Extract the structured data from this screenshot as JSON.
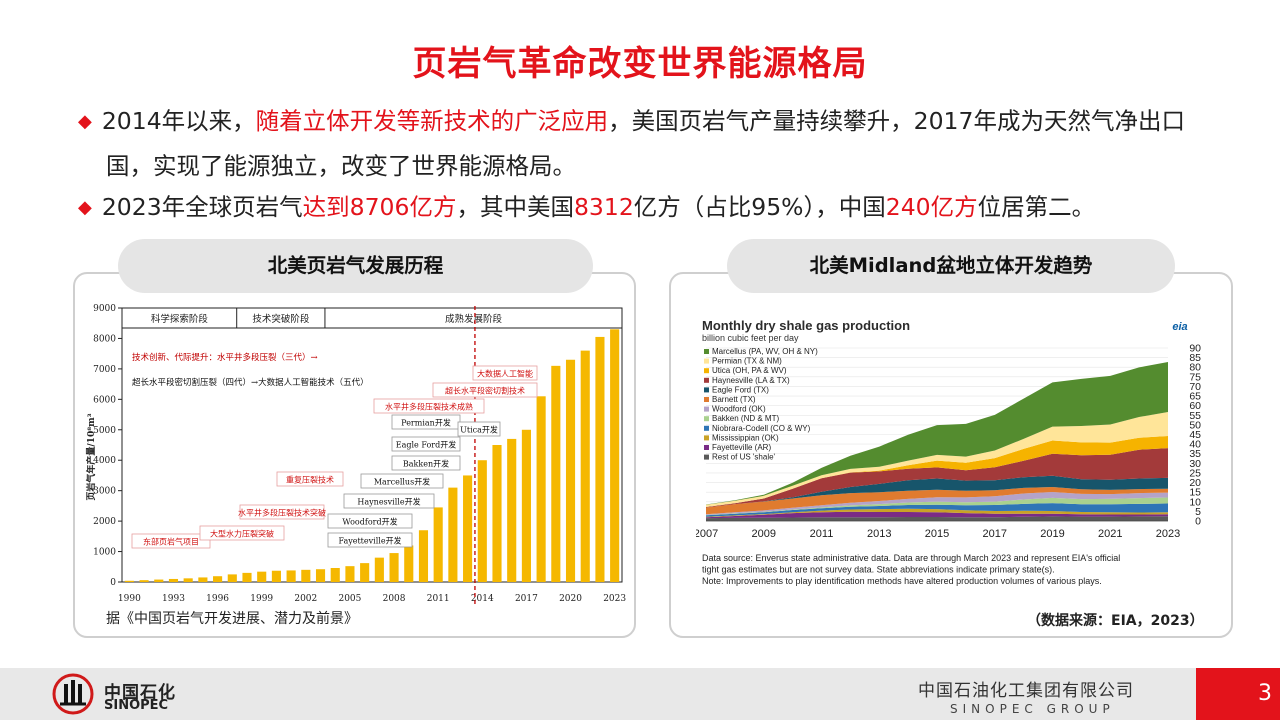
{
  "title": "页岩气革命改变世界能源格局",
  "bullets": {
    "b1_pre": "2014年以来，",
    "b1_red": "随着立体开发等新技术的广泛应用",
    "b1_post": "，美国页岩气产量持续攀升，2017年成为天然气净出口",
    "b1_line2": "国，实现了能源独立，改变了世界能源格局。",
    "b2_pre": "2023年全球页岩气",
    "b2_red1": "达到8706亿方",
    "b2_mid": "，其中美国",
    "b2_red2": "8312",
    "b2_mid2": "亿方（占比95%），中国",
    "b2_red3": "240亿方",
    "b2_post": "位居第二。"
  },
  "left_panel": {
    "heading": "北美页岩气发展历程",
    "source": "据《中国页岩气开发进展、潜力及前景》"
  },
  "right_panel": {
    "heading": "北美Midland盆地立体开发趋势",
    "source": "（数据来源：EIA，2023）"
  },
  "footer": {
    "logo_cn": "中国石化",
    "logo_en": "SINOPEC",
    "company_cn": "中国石油化工集团有限公司",
    "company_en": "SINOPEC GROUP",
    "page": "3"
  },
  "chart_data": [
    {
      "type": "bar",
      "ylabel": "页岩气年产量/10⁸m³",
      "ylim": [
        0,
        9000
      ],
      "yticks": [
        "0",
        "1000",
        "2000",
        "3000",
        "4000",
        "5000",
        "6000",
        "7000",
        "8000",
        "9000"
      ],
      "xticks": [
        "1990",
        "1993",
        "1996",
        "1999",
        "2002",
        "2005",
        "2008",
        "2011",
        "2014",
        "2017",
        "2020",
        "2023"
      ],
      "x": [
        1990,
        1991,
        1992,
        1993,
        1994,
        1995,
        1996,
        1997,
        1998,
        1999,
        2000,
        2001,
        2002,
        2003,
        2004,
        2005,
        2006,
        2007,
        2008,
        2009,
        2010,
        2011,
        2012,
        2013,
        2014,
        2015,
        2016,
        2017,
        2018,
        2019,
        2020,
        2021,
        2022,
        2023
      ],
      "values": [
        40,
        60,
        80,
        100,
        120,
        150,
        190,
        250,
        300,
        340,
        370,
        380,
        400,
        420,
        460,
        520,
        620,
        800,
        950,
        1200,
        1700,
        2450,
        3100,
        3500,
        4000,
        4500,
        4700,
        5000,
        6100,
        7100,
        7300,
        7600,
        8050,
        8300
      ],
      "color": "#f5b800",
      "stages": [
        "科学探索阶段",
        "技术突破阶段",
        "成熟发展阶段"
      ],
      "tech_note1": "技术创新、代际提升：水平井多段压裂（三代）→",
      "tech_note2": "超长水平段密切割压裂（四代）→大数据人工智能技术（五代）",
      "annotations": [
        {
          "text": "东部页岩气项目",
          "red": true
        },
        {
          "text": "大型水力压裂突破",
          "red": true
        },
        {
          "text": "水平井多段压裂技术突破",
          "red": true
        },
        {
          "text": "重复压裂技术",
          "red": true
        },
        {
          "text": "Fayetteville开发",
          "red": false
        },
        {
          "text": "Woodford开发",
          "red": false
        },
        {
          "text": "Haynesville开发",
          "red": false
        },
        {
          "text": "Marcellus开发",
          "red": false
        },
        {
          "text": "Bakken开发",
          "red": false
        },
        {
          "text": "Eagle Ford开发",
          "red": false
        },
        {
          "text": "Permian开发",
          "red": false
        },
        {
          "text": "水平井多段压裂技术成熟",
          "red": true
        },
        {
          "text": "Utica开发",
          "red": false
        },
        {
          "text": "超长水平段密切割技术",
          "red": true
        },
        {
          "text": "大数据人工智能",
          "red": true
        }
      ]
    },
    {
      "type": "area",
      "title": "Monthly dry shale gas production",
      "subtitle": "billion cubic feet per day",
      "logo": "eia",
      "ylim": [
        0,
        90
      ],
      "yticks": [
        "0",
        "5",
        "10",
        "15",
        "20",
        "25",
        "30",
        "35",
        "40",
        "45",
        "50",
        "55",
        "60",
        "65",
        "70",
        "75",
        "80",
        "85",
        "90"
      ],
      "xticks": [
        "2007",
        "2009",
        "2011",
        "2013",
        "2015",
        "2017",
        "2019",
        "2021",
        "2023"
      ],
      "x": [
        2007,
        2008,
        2009,
        2010,
        2011,
        2012,
        2013,
        2014,
        2015,
        2016,
        2017,
        2018,
        2019,
        2020,
        2021,
        2022,
        2023
      ],
      "series": [
        {
          "name": "Rest of US 'shale'",
          "color": "#5a5a5a",
          "values": [
            1.5,
            1.6,
            1.7,
            1.8,
            1.9,
            2,
            2,
            2.1,
            2.1,
            2,
            2,
            2.2,
            2.4,
            2.3,
            2.3,
            2.4,
            2.5
          ]
        },
        {
          "name": "Fayetteville (AR)",
          "color": "#7a2b86",
          "values": [
            0.5,
            1,
            1.6,
            2.3,
            2.7,
            2.8,
            2.7,
            2.6,
            2.4,
            2.1,
            1.8,
            1.6,
            1.4,
            1.2,
            1.1,
            1,
            1
          ]
        },
        {
          "name": "Mississippian (OK)",
          "color": "#c9a227",
          "values": [
            0.2,
            0.3,
            0.3,
            0.5,
            0.8,
            1.2,
            1.5,
            1.7,
            1.7,
            1.5,
            1.4,
            1.5,
            1.4,
            1.2,
            1.1,
            1,
            1
          ]
        },
        {
          "name": "Niobrara-Codell (CO & WY)",
          "color": "#2e75b6",
          "values": [
            0.8,
            0.9,
            1,
            1.1,
            1.2,
            1.4,
            1.6,
            1.9,
            2.3,
            2.6,
            3.1,
            3.6,
            4.1,
            4,
            4.2,
            4.5,
            4.6
          ]
        },
        {
          "name": "Bakken (ND & MT)",
          "color": "#a9d18e",
          "values": [
            0.1,
            0.2,
            0.2,
            0.3,
            0.5,
            0.7,
            1,
            1.3,
            1.6,
            1.6,
            1.8,
            2.3,
            2.7,
            2.7,
            2.8,
            3,
            3.1
          ]
        },
        {
          "name": "Woodford (OK)",
          "color": "#b4a3c9",
          "values": [
            0.4,
            0.6,
            0.7,
            0.9,
            1.1,
            1.4,
            1.6,
            1.9,
            2.3,
            2.5,
            2.8,
            3.1,
            3.1,
            2.7,
            2.5,
            2.6,
            2.6
          ]
        },
        {
          "name": "Barnett (TX)",
          "color": "#e07b2f",
          "values": [
            3.5,
            4.2,
            4.6,
            4.8,
            5.2,
            5,
            4.6,
            4.2,
            3.9,
            3.4,
            3.1,
            2.9,
            2.6,
            2.4,
            2.2,
            2.1,
            2
          ]
        },
        {
          "name": "Eagle Ford (TX)",
          "color": "#17556b",
          "values": [
            0,
            0,
            0.1,
            0.6,
            1.8,
            3.2,
            4.3,
            5.5,
            5.8,
            5.3,
            5.2,
            5.6,
            5.8,
            5.2,
            5.3,
            5.5,
            5.6
          ]
        },
        {
          "name": "Haynesville (LA & TX)",
          "color": "#a33a3a",
          "values": [
            0.3,
            0.4,
            1.5,
            4.5,
            7,
            7.5,
            6.5,
            6,
            5.8,
            5.4,
            6.8,
            8.5,
            11.5,
            12.5,
            13,
            15,
            15.5
          ]
        },
        {
          "name": "Utica (OH, PA & WV)",
          "color": "#f6b300",
          "values": [
            0,
            0,
            0,
            0,
            0,
            0.1,
            0.4,
            1.8,
            3.5,
            3.9,
            4.7,
            6.2,
            6.9,
            6.7,
            6.3,
            6.2,
            6.3
          ]
        },
        {
          "name": "Permian (TX & NM)",
          "color": "#ffe599",
          "values": [
            1.2,
            1.3,
            1.4,
            1.5,
            1.6,
            1.8,
            2,
            2.4,
            3,
            3.2,
            4,
            5.2,
            7.2,
            8.5,
            9.4,
            10.8,
            12.5
          ]
        },
        {
          "name": "Marcellus (PA, WV, OH & NY)",
          "color": "#548c2f",
          "values": [
            0.1,
            0.3,
            0.6,
            1.6,
            3.8,
            6.8,
            10.5,
            13.5,
            15.5,
            17,
            18.5,
            21,
            23,
            24.5,
            25.3,
            25.8,
            26
          ]
        }
      ],
      "notes": [
        "Data source: Enverus state administrative data. Data are through March 2023 and represent EIA's official",
        "tight gas estimates but are not survey data. State abbreviations indicate primary state(s).",
        "Note: Improvements to play identification methods have altered production volumes of various plays."
      ]
    }
  ]
}
